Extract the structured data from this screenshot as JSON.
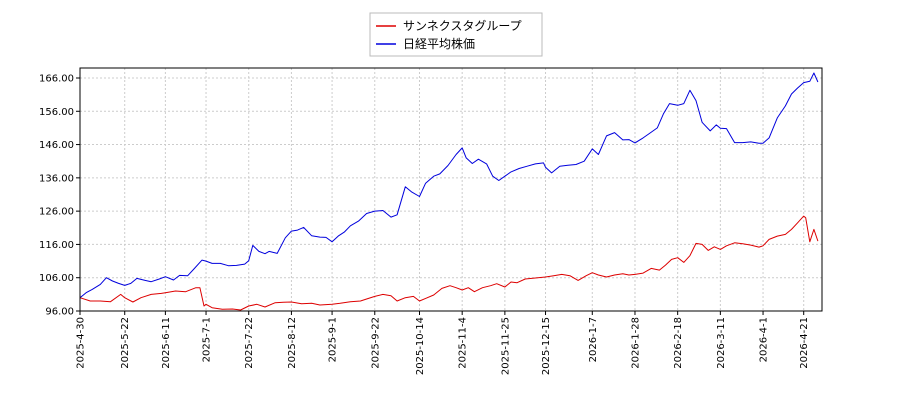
{
  "chart_data": {
    "type": "line",
    "title": "",
    "xlabel": "",
    "ylabel": "",
    "ylim": [
      96,
      169
    ],
    "xlim": [
      "2025-04-30",
      "2026-04-30"
    ],
    "yticks": [
      "96.00",
      "106.00",
      "116.00",
      "126.00",
      "136.00",
      "146.00",
      "156.00",
      "166.00"
    ],
    "xticks": [
      "2025-4-30",
      "2025-5-22",
      "2025-6-11",
      "2025-7-1",
      "2025-7-22",
      "2025-8-12",
      "2025-9-1",
      "2025-9-22",
      "2025-10-14",
      "2025-11-4",
      "2025-11-25",
      "2025-12-15",
      "2026-1-7",
      "2026-1-28",
      "2026-2-18",
      "2026-3-11",
      "2026-4-1",
      "2026-4-21"
    ],
    "grid": true,
    "legend_position": "top-center",
    "series": [
      {
        "name": "サンネクスタグループ",
        "color": "#dd0000",
        "points": [
          [
            "2025-04-30",
            100
          ],
          [
            "2025-05-05",
            99
          ],
          [
            "2025-05-10",
            99
          ],
          [
            "2025-05-15",
            98.8
          ],
          [
            "2025-05-20",
            101
          ],
          [
            "2025-05-22",
            100
          ],
          [
            "2025-05-26",
            98.7
          ],
          [
            "2025-05-30",
            100
          ],
          [
            "2025-06-04",
            101
          ],
          [
            "2025-06-09",
            101.3
          ],
          [
            "2025-06-11",
            101.5
          ],
          [
            "2025-06-16",
            102
          ],
          [
            "2025-06-21",
            101.8
          ],
          [
            "2025-06-26",
            103
          ],
          [
            "2025-06-28",
            103
          ],
          [
            "2025-06-30",
            97.5
          ],
          [
            "2025-07-01",
            98
          ],
          [
            "2025-07-04",
            97
          ],
          [
            "2025-07-09",
            96.5
          ],
          [
            "2025-07-14",
            96.6
          ],
          [
            "2025-07-18",
            96.3
          ],
          [
            "2025-07-22",
            97.5
          ],
          [
            "2025-07-26",
            98
          ],
          [
            "2025-07-30",
            97.2
          ],
          [
            "2025-08-04",
            98.5
          ],
          [
            "2025-08-08",
            98.6
          ],
          [
            "2025-08-12",
            98.7
          ],
          [
            "2025-08-17",
            98.2
          ],
          [
            "2025-08-22",
            98.3
          ],
          [
            "2025-08-26",
            97.8
          ],
          [
            "2025-09-01",
            98
          ],
          [
            "2025-09-05",
            98.3
          ],
          [
            "2025-09-10",
            98.8
          ],
          [
            "2025-09-15",
            99
          ],
          [
            "2025-09-18",
            99.6
          ],
          [
            "2025-09-22",
            100.4
          ],
          [
            "2025-09-26",
            101
          ],
          [
            "2025-09-30",
            100.6
          ],
          [
            "2025-10-03",
            99
          ],
          [
            "2025-10-07",
            100
          ],
          [
            "2025-10-11",
            100.4
          ],
          [
            "2025-10-14",
            99
          ],
          [
            "2025-10-17",
            99.8
          ],
          [
            "2025-10-21",
            100.8
          ],
          [
            "2025-10-25",
            102.8
          ],
          [
            "2025-10-29",
            103.6
          ],
          [
            "2025-11-01",
            103
          ],
          [
            "2025-11-04",
            102.3
          ],
          [
            "2025-11-07",
            103
          ],
          [
            "2025-11-10",
            101.8
          ],
          [
            "2025-11-14",
            103
          ],
          [
            "2025-11-18",
            103.6
          ],
          [
            "2025-11-21",
            104.2
          ],
          [
            "2025-11-25",
            103.2
          ],
          [
            "2025-11-28",
            104.7
          ],
          [
            "2025-12-01",
            104.5
          ],
          [
            "2025-12-05",
            105.6
          ],
          [
            "2025-12-10",
            105.9
          ],
          [
            "2025-12-15",
            106.2
          ],
          [
            "2025-12-19",
            106.6
          ],
          [
            "2025-12-23",
            107
          ],
          [
            "2025-12-27",
            106.6
          ],
          [
            "2025-12-31",
            105.2
          ],
          [
            "2026-01-04",
            106.6
          ],
          [
            "2026-01-07",
            107.5
          ],
          [
            "2026-01-10",
            106.8
          ],
          [
            "2026-01-14",
            106.2
          ],
          [
            "2026-01-18",
            106.8
          ],
          [
            "2026-01-22",
            107.2
          ],
          [
            "2026-01-25",
            106.8
          ],
          [
            "2026-01-28",
            107
          ],
          [
            "2026-02-01",
            107.4
          ],
          [
            "2026-02-05",
            108.8
          ],
          [
            "2026-02-09",
            108.3
          ],
          [
            "2026-02-12",
            109.8
          ],
          [
            "2026-02-15",
            111.5
          ],
          [
            "2026-02-18",
            112
          ],
          [
            "2026-02-21",
            110.6
          ],
          [
            "2026-02-24",
            112.6
          ],
          [
            "2026-02-27",
            116.3
          ],
          [
            "2026-03-02",
            116
          ],
          [
            "2026-03-05",
            114.2
          ],
          [
            "2026-03-08",
            115.3
          ],
          [
            "2026-03-11",
            114.5
          ],
          [
            "2026-03-14",
            115.6
          ],
          [
            "2026-03-18",
            116.5
          ],
          [
            "2026-03-22",
            116.2
          ],
          [
            "2026-03-26",
            115.8
          ],
          [
            "2026-03-30",
            115.2
          ],
          [
            "2026-04-01",
            115.6
          ],
          [
            "2026-04-04",
            117.5
          ],
          [
            "2026-04-08",
            118.5
          ],
          [
            "2026-04-12",
            119
          ],
          [
            "2026-04-15",
            120.5
          ],
          [
            "2026-04-18",
            122.5
          ],
          [
            "2026-04-21",
            124.5
          ],
          [
            "2026-04-22",
            124
          ],
          [
            "2026-04-24",
            116.8
          ],
          [
            "2026-04-26",
            120.5
          ],
          [
            "2026-04-28",
            117
          ]
        ]
      },
      {
        "name": "日経平均株価",
        "color": "#0000dd",
        "points": [
          [
            "2025-04-30",
            100
          ],
          [
            "2025-05-03",
            101.5
          ],
          [
            "2025-05-06",
            102.5
          ],
          [
            "2025-05-10",
            104
          ],
          [
            "2025-05-13",
            106
          ],
          [
            "2025-05-16",
            105
          ],
          [
            "2025-05-19",
            104.3
          ],
          [
            "2025-05-22",
            103.7
          ],
          [
            "2025-05-25",
            104.3
          ],
          [
            "2025-05-28",
            105.8
          ],
          [
            "2025-06-01",
            105.2
          ],
          [
            "2025-06-04",
            104.8
          ],
          [
            "2025-06-08",
            105.6
          ],
          [
            "2025-06-11",
            106.3
          ],
          [
            "2025-06-15",
            105.3
          ],
          [
            "2025-06-18",
            106.7
          ],
          [
            "2025-06-22",
            106.6
          ],
          [
            "2025-06-25",
            108.6
          ],
          [
            "2025-06-29",
            111.3
          ],
          [
            "2025-07-01",
            111
          ],
          [
            "2025-07-04",
            110.3
          ],
          [
            "2025-07-08",
            110.3
          ],
          [
            "2025-07-12",
            109.6
          ],
          [
            "2025-07-16",
            109.7
          ],
          [
            "2025-07-20",
            110.1
          ],
          [
            "2025-07-22",
            111.1
          ],
          [
            "2025-07-24",
            115.7
          ],
          [
            "2025-07-27",
            113.9
          ],
          [
            "2025-07-30",
            113.2
          ],
          [
            "2025-08-01",
            113.9
          ],
          [
            "2025-08-05",
            113.3
          ],
          [
            "2025-08-09",
            118
          ],
          [
            "2025-08-12",
            120
          ],
          [
            "2025-08-15",
            120.3
          ],
          [
            "2025-08-18",
            121.1
          ],
          [
            "2025-08-22",
            118.6
          ],
          [
            "2025-08-26",
            118.2
          ],
          [
            "2025-08-29",
            118.1
          ],
          [
            "2025-09-01",
            116.8
          ],
          [
            "2025-09-04",
            118.5
          ],
          [
            "2025-09-07",
            119.7
          ],
          [
            "2025-09-10",
            121.6
          ],
          [
            "2025-09-14",
            123
          ],
          [
            "2025-09-18",
            125.3
          ],
          [
            "2025-09-22",
            126
          ],
          [
            "2025-09-26",
            126.2
          ],
          [
            "2025-09-30",
            124.2
          ],
          [
            "2025-10-03",
            124.9
          ],
          [
            "2025-10-07",
            133.3
          ],
          [
            "2025-10-10",
            131.8
          ],
          [
            "2025-10-14",
            130.4
          ],
          [
            "2025-10-17",
            134.4
          ],
          [
            "2025-10-21",
            136.5
          ],
          [
            "2025-10-24",
            137.2
          ],
          [
            "2025-10-28",
            139.7
          ],
          [
            "2025-11-01",
            143
          ],
          [
            "2025-11-04",
            145
          ],
          [
            "2025-11-06",
            142
          ],
          [
            "2025-11-09",
            140.3
          ],
          [
            "2025-11-12",
            141.6
          ],
          [
            "2025-11-16",
            140.2
          ],
          [
            "2025-11-19",
            136.5
          ],
          [
            "2025-11-22",
            135.2
          ],
          [
            "2025-11-25",
            136.5
          ],
          [
            "2025-11-28",
            137.8
          ],
          [
            "2025-12-02",
            138.8
          ],
          [
            "2025-12-06",
            139.5
          ],
          [
            "2025-12-10",
            140.2
          ],
          [
            "2025-12-14",
            140.5
          ],
          [
            "2025-12-15",
            139.2
          ],
          [
            "2025-12-18",
            137.5
          ],
          [
            "2025-12-22",
            139.5
          ],
          [
            "2025-12-26",
            139.8
          ],
          [
            "2025-12-30",
            140
          ],
          [
            "2026-01-03",
            141
          ],
          [
            "2026-01-07",
            144.7
          ],
          [
            "2026-01-10",
            143
          ],
          [
            "2026-01-14",
            148.6
          ],
          [
            "2026-01-18",
            149.6
          ],
          [
            "2026-01-22",
            147.4
          ],
          [
            "2026-01-25",
            147.5
          ],
          [
            "2026-01-28",
            146.5
          ],
          [
            "2026-02-01",
            148
          ],
          [
            "2026-02-04",
            149.3
          ],
          [
            "2026-02-08",
            151
          ],
          [
            "2026-02-11",
            155.2
          ],
          [
            "2026-02-14",
            158.3
          ],
          [
            "2026-02-18",
            157.8
          ],
          [
            "2026-02-21",
            158.3
          ],
          [
            "2026-02-24",
            162.3
          ],
          [
            "2026-02-27",
            159.2
          ],
          [
            "2026-03-02",
            152.7
          ],
          [
            "2026-03-06",
            150.1
          ],
          [
            "2026-03-09",
            151.9
          ],
          [
            "2026-03-11",
            150.9
          ],
          [
            "2026-03-14",
            150.8
          ],
          [
            "2026-03-18",
            146.6
          ],
          [
            "2026-03-22",
            146.6
          ],
          [
            "2026-03-26",
            146.8
          ],
          [
            "2026-03-30",
            146.4
          ],
          [
            "2026-04-01",
            146.4
          ],
          [
            "2026-04-04",
            148
          ],
          [
            "2026-04-08",
            154
          ],
          [
            "2026-04-12",
            157.6
          ],
          [
            "2026-04-15",
            161.2
          ],
          [
            "2026-04-18",
            163
          ],
          [
            "2026-04-21",
            164.6
          ],
          [
            "2026-04-24",
            165
          ],
          [
            "2026-04-26",
            167.5
          ],
          [
            "2026-04-28",
            164.8
          ]
        ]
      }
    ]
  }
}
